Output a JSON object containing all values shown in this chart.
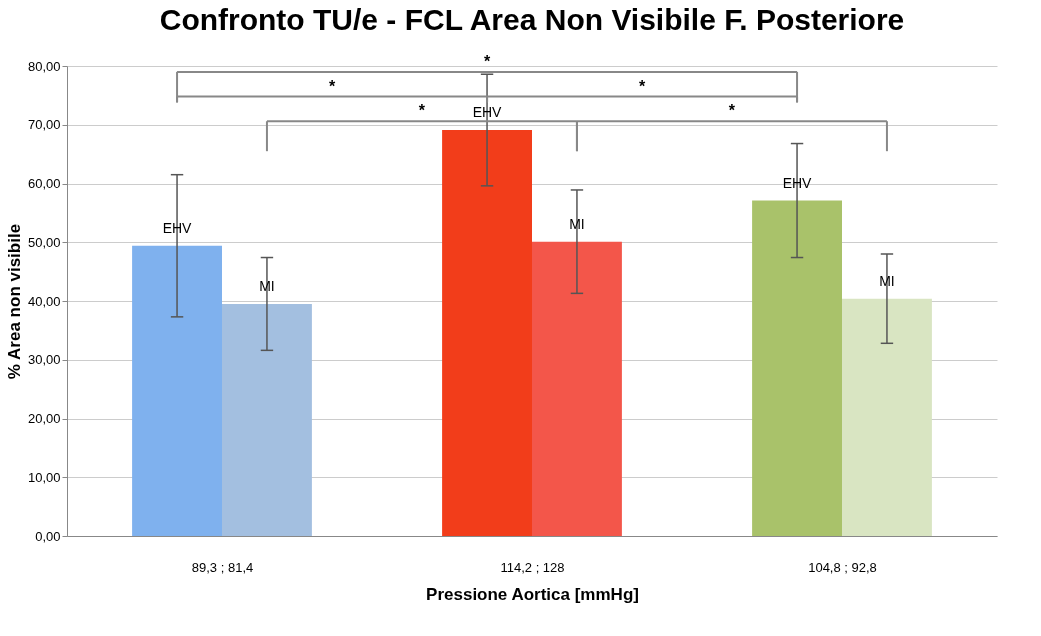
{
  "chart_data": {
    "type": "bar",
    "title": "Confronto TU/e - FCL Area Non Visibile F. Posteriore",
    "xlabel": "Pressione Aortica [mmHg]",
    "ylabel": "% Area non visibile",
    "categories": [
      "89,3 ; 81,4",
      "114,2 ; 128",
      "104,8 ; 92,8"
    ],
    "series": [
      {
        "name": "EHV",
        "colors": [
          "#7fb1ee",
          "#f23d1a",
          "#a9c26a"
        ],
        "values": [
          49.4,
          69.1,
          57.1
        ],
        "errors": [
          12.1,
          9.5,
          9.7
        ]
      },
      {
        "name": "MI",
        "colors": [
          "#a3bfe0",
          "#f3564a",
          "#d9e5c2"
        ],
        "values": [
          39.5,
          50.1,
          40.4
        ],
        "errors": [
          7.9,
          8.8,
          7.6
        ]
      }
    ],
    "ylim": [
      0,
      80
    ],
    "yticks": [
      {
        "value": 0,
        "label": "0,00"
      },
      {
        "value": 10,
        "label": "10,00"
      },
      {
        "value": 20,
        "label": "20,00"
      },
      {
        "value": 30,
        "label": "30,00"
      },
      {
        "value": 40,
        "label": "40,00"
      },
      {
        "value": 50,
        "label": "50,00"
      },
      {
        "value": 60,
        "label": "60,00"
      },
      {
        "value": 70,
        "label": "70,00"
      },
      {
        "value": 80,
        "label": "80,00"
      }
    ],
    "grid": "y",
    "legend": false,
    "annotations": [
      "*",
      "*",
      "*",
      "*",
      "*"
    ]
  }
}
